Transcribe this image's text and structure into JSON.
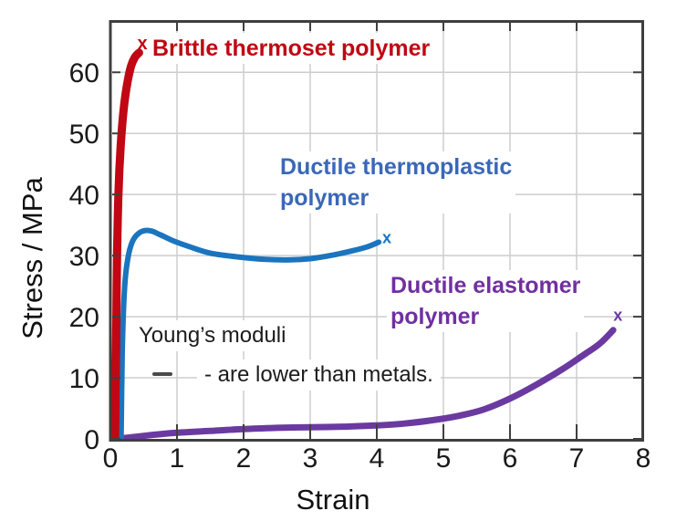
{
  "chart_data": {
    "type": "line",
    "title": "",
    "xlabel": "Strain",
    "ylabel": "Stress / MPa",
    "xlim": [
      0,
      8
    ],
    "ylim": [
      0,
      68.4
    ],
    "x_ticks": [
      0,
      1,
      2,
      3,
      4,
      5,
      6,
      7,
      8
    ],
    "y_ticks": [
      0,
      10,
      20,
      30,
      40,
      50,
      60
    ],
    "grid": true,
    "legend_position": "none",
    "colors": {
      "axis": "#3f3f3f",
      "grid": "#cdcdcd",
      "tick_text": "#1a1a1a",
      "background": "#ffffff"
    },
    "series": [
      {
        "name": "brittle-thermoset-polymer",
        "label": "Brittle thermoset polymer",
        "color": "#c00713",
        "label_color": "#c00713",
        "stroke_width": 9,
        "points": [
          [
            0.07,
            0
          ],
          [
            0.08,
            10
          ],
          [
            0.09,
            20
          ],
          [
            0.1,
            30
          ],
          [
            0.12,
            40
          ],
          [
            0.155,
            48
          ],
          [
            0.2,
            54
          ],
          [
            0.25,
            58
          ],
          [
            0.31,
            61
          ],
          [
            0.37,
            62.5
          ],
          [
            0.43,
            63.2
          ]
        ],
        "end_marker": {
          "x": 0.48,
          "y": 64.7,
          "glyph": "x"
        }
      },
      {
        "name": "ductile-thermoplastic-polymer",
        "label": "Ductile thermoplastic\npolymer",
        "color": "#1b74be",
        "label_color": "#3a68b8",
        "stroke_width": 6,
        "points": [
          [
            0.16,
            0
          ],
          [
            0.17,
            8
          ],
          [
            0.18,
            15
          ],
          [
            0.2,
            22
          ],
          [
            0.23,
            27
          ],
          [
            0.28,
            30.5
          ],
          [
            0.34,
            32.5
          ],
          [
            0.42,
            33.6
          ],
          [
            0.52,
            34.1
          ],
          [
            0.62,
            34.0
          ],
          [
            0.75,
            33.4
          ],
          [
            0.95,
            32.4
          ],
          [
            1.2,
            31.4
          ],
          [
            1.5,
            30.4
          ],
          [
            1.9,
            29.8
          ],
          [
            2.3,
            29.4
          ],
          [
            2.7,
            29.3
          ],
          [
            3.0,
            29.5
          ],
          [
            3.3,
            30.0
          ],
          [
            3.6,
            30.7
          ],
          [
            3.85,
            31.4
          ],
          [
            4.03,
            32.2
          ]
        ],
        "end_marker": {
          "x": 4.15,
          "y": 32.9,
          "glyph": "x"
        }
      },
      {
        "name": "ductile-elastomer-polymer",
        "label": "Ductile elastomer\npolymer",
        "color": "#6b3aa0",
        "label_color": "#7030a0",
        "stroke_width": 7,
        "points": [
          [
            0.1,
            0
          ],
          [
            0.5,
            0.5
          ],
          [
            1.0,
            1.0
          ],
          [
            1.5,
            1.3
          ],
          [
            2.0,
            1.6
          ],
          [
            2.5,
            1.8
          ],
          [
            3.0,
            1.9
          ],
          [
            3.5,
            2.0
          ],
          [
            4.0,
            2.2
          ],
          [
            4.4,
            2.5
          ],
          [
            4.8,
            3.0
          ],
          [
            5.2,
            3.7
          ],
          [
            5.6,
            4.8
          ],
          [
            6.0,
            6.6
          ],
          [
            6.4,
            8.9
          ],
          [
            6.8,
            11.5
          ],
          [
            7.1,
            13.7
          ],
          [
            7.35,
            15.6
          ],
          [
            7.55,
            17.8
          ]
        ],
        "end_marker": {
          "x": 7.62,
          "y": 20.2,
          "glyph": "x"
        }
      }
    ],
    "annotations": {
      "line1": "Young’s moduli",
      "line2": "- are lower than metals."
    }
  }
}
